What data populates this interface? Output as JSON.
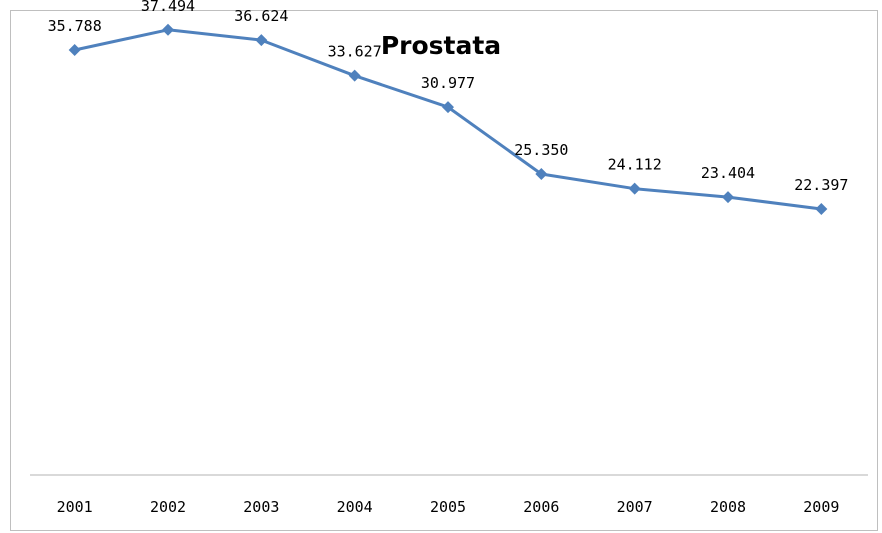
{
  "chart_data": {
    "type": "line",
    "title": "Prostata",
    "xlabel": "",
    "ylabel": "",
    "categories": [
      "2001",
      "2002",
      "2003",
      "2004",
      "2005",
      "2006",
      "2007",
      "2008",
      "2009"
    ],
    "series": [
      {
        "values": [
          35788,
          37494,
          36624,
          33627,
          30977,
          25350,
          24112,
          23404,
          22397
        ],
        "value_labels": [
          "35.788",
          "37.494",
          "36.624",
          "33.627",
          "30.977",
          "25.350",
          "24.112",
          "23.404",
          "22.397"
        ]
      }
    ],
    "ylim": [
      0,
      40000
    ],
    "grid": false,
    "legend": "none",
    "colors": {
      "line": "#4f81bd",
      "axis": "#b3b3b3",
      "frame": "#bfbfbf",
      "text": "#000000"
    }
  }
}
